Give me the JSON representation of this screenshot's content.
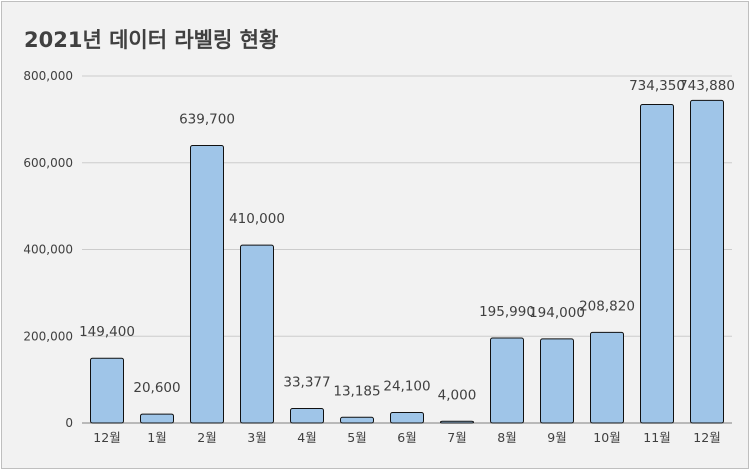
{
  "chart_data": {
    "type": "bar",
    "title": "2021년 데이터 라벨링 현황",
    "xlabel": "",
    "ylabel": "",
    "categories": [
      "12월",
      "1월",
      "2월",
      "3월",
      "4월",
      "5월",
      "6월",
      "7월",
      "8월",
      "9월",
      "10월",
      "11월",
      "12월"
    ],
    "values": [
      149400,
      20600,
      639700,
      410000,
      33377,
      13185,
      24100,
      4000,
      195990,
      194000,
      208820,
      734350,
      743880
    ],
    "data_labels": [
      "149,400",
      "20,600",
      "639,700",
      "410,000",
      "33,377",
      "13,185",
      "24,100",
      "4,000",
      "195,990",
      "194,000",
      "208,820",
      "734,350",
      "743,880"
    ],
    "ylim": [
      0,
      800000
    ],
    "yticks": [
      0,
      200000,
      400000,
      600000,
      800000
    ],
    "ytick_labels": [
      "0",
      "200,000",
      "400,000",
      "600,000",
      "800,000"
    ],
    "grid": true,
    "legend": "none",
    "colors": {
      "bar_fill": "#9fc5e8",
      "bar_stroke": "#111111",
      "grid": "#cccccc",
      "background": "#f2f2f2",
      "text": "#404040"
    }
  }
}
